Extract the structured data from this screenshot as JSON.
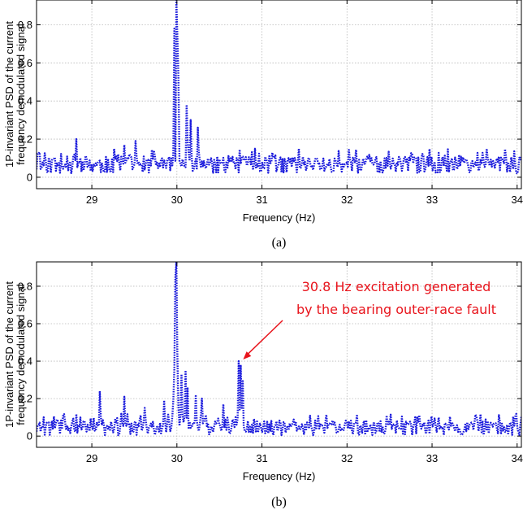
{
  "chart_data": [
    {
      "panel": "(a)",
      "type": "line",
      "xlabel": "Frequency (Hz)",
      "ylabel_lines": [
        "1P-invariant PSD of the current",
        "frequency demodulated signal"
      ],
      "xlim": [
        28.35,
        34.05
      ],
      "ylim": [
        -0.06,
        0.93
      ],
      "xticks": [
        29,
        30,
        31,
        32,
        33,
        34
      ],
      "yticks": [
        0,
        0.2,
        0.4,
        0.6,
        0.8
      ],
      "xtick_labels": [
        "29",
        "30",
        "31",
        "32",
        "33",
        "34"
      ],
      "ytick_labels": [
        "0",
        "0.2",
        "0.4",
        "0.6",
        "0.8"
      ],
      "grid": true,
      "line_style": "dotted",
      "series_color": "#1a1adc",
      "caption": "(a)",
      "peaks": [
        {
          "x": 29.97,
          "y": 0.78
        },
        {
          "x": 29.99,
          "y": 0.93
        },
        {
          "x": 30.01,
          "y": 0.74
        },
        {
          "x": 30.02,
          "y": 0.52
        },
        {
          "x": 30.12,
          "y": 0.38
        },
        {
          "x": 30.16,
          "y": 0.3
        },
        {
          "x": 30.25,
          "y": 0.26
        },
        {
          "x": 28.82,
          "y": 0.2
        },
        {
          "x": 29.38,
          "y": 0.17
        },
        {
          "x": 29.52,
          "y": 0.19
        },
        {
          "x": 30.92,
          "y": 0.15
        }
      ],
      "baseline_level": 0.06,
      "noise_amplitude": 0.09
    },
    {
      "panel": "(b)",
      "type": "line",
      "xlabel": "Frequency (Hz)",
      "ylabel_lines": [
        "1P-invariant PSD of the current",
        "frequency demodulated signal"
      ],
      "xlim": [
        28.35,
        34.05
      ],
      "ylim": [
        -0.06,
        0.93
      ],
      "xticks": [
        29,
        30,
        31,
        32,
        33,
        34
      ],
      "yticks": [
        0,
        0.2,
        0.4,
        0.6,
        0.8
      ],
      "xtick_labels": [
        "29",
        "30",
        "31",
        "32",
        "33",
        "34"
      ],
      "ytick_labels": [
        "0",
        "0.2",
        "0.4",
        "0.6",
        "0.8"
      ],
      "grid": true,
      "line_style": "dotted",
      "series_color": "#1a1adc",
      "caption": "(b)",
      "peaks": [
        {
          "x": 29.98,
          "y": 0.85
        },
        {
          "x": 30.0,
          "y": 0.93
        },
        {
          "x": 30.06,
          "y": 0.33
        },
        {
          "x": 30.1,
          "y": 0.35
        },
        {
          "x": 30.13,
          "y": 0.26
        },
        {
          "x": 30.22,
          "y": 0.22
        },
        {
          "x": 30.3,
          "y": 0.2
        },
        {
          "x": 30.73,
          "y": 0.4
        },
        {
          "x": 30.75,
          "y": 0.38
        },
        {
          "x": 30.77,
          "y": 0.3
        },
        {
          "x": 29.09,
          "y": 0.24
        },
        {
          "x": 29.38,
          "y": 0.21
        },
        {
          "x": 29.85,
          "y": 0.19
        },
        {
          "x": 30.55,
          "y": 0.17
        },
        {
          "x": 29.62,
          "y": 0.15
        }
      ],
      "baseline_level": 0.04,
      "noise_amplitude": 0.08,
      "annotation": {
        "text_lines": [
          "30.8 Hz excitation generated",
          "by the bearing outer-race fault"
        ],
        "target": {
          "x": 30.75,
          "y": 0.4
        },
        "color": "#e8141c"
      }
    }
  ]
}
